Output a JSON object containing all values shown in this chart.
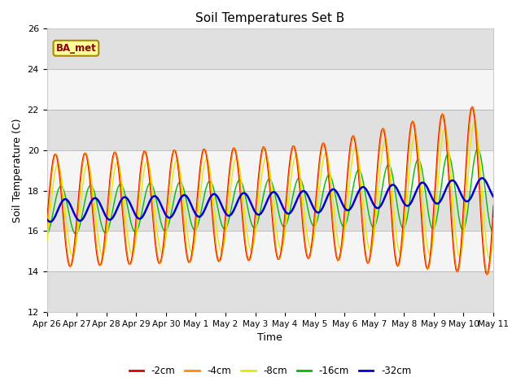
{
  "title": "Soil Temperatures Set B",
  "xlabel": "Time",
  "ylabel": "Soil Temperature (C)",
  "ylim": [
    12,
    26
  ],
  "label": "BA_met",
  "xtick_labels": [
    "Apr 26",
    "Apr 27",
    "Apr 28",
    "Apr 29",
    "Apr 30",
    "May 1",
    "May 2",
    "May 3",
    "May 4",
    "May 5",
    "May 6",
    "May 7",
    "May 8",
    "May 9",
    "May 10",
    "May 11"
  ],
  "legend_entries": [
    "-2cm",
    "-4cm",
    "-8cm",
    "-16cm",
    "-32cm"
  ],
  "line_colors": [
    "#dd0000",
    "#ff8c00",
    "#e8e800",
    "#00bb00",
    "#0000cc"
  ],
  "background_bands": [
    [
      12,
      14,
      "#e0e0e0"
    ],
    [
      14,
      16,
      "#f5f5f5"
    ],
    [
      16,
      18,
      "#e0e0e0"
    ],
    [
      18,
      20,
      "#f5f5f5"
    ],
    [
      20,
      22,
      "#e0e0e0"
    ],
    [
      22,
      24,
      "#f5f5f5"
    ],
    [
      24,
      26,
      "#e0e0e0"
    ]
  ],
  "n_points": 360,
  "n_days": 15
}
